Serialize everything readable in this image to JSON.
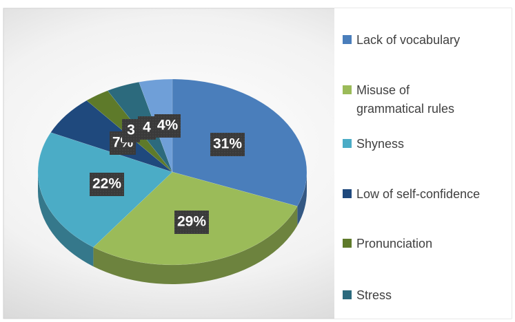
{
  "chart_data": {
    "type": "pie",
    "categories": [
      "Lack of vocabulary",
      "Misuse of grammatical rules",
      "Shyness",
      "Low of self-confidence",
      "Pronunciation",
      "Stress",
      null
    ],
    "values": [
      31,
      29,
      22,
      7,
      3,
      4,
      4
    ],
    "value_labels": [
      "31%",
      "29%",
      "22%",
      "7%",
      "3",
      "4",
      "4%"
    ],
    "colors": [
      "#4a7ebb",
      "#9bbb59",
      "#4bacc6",
      "#1f497d",
      "#5e7a2a",
      "#2c6a7d",
      "#6f9fd8"
    ]
  }
}
